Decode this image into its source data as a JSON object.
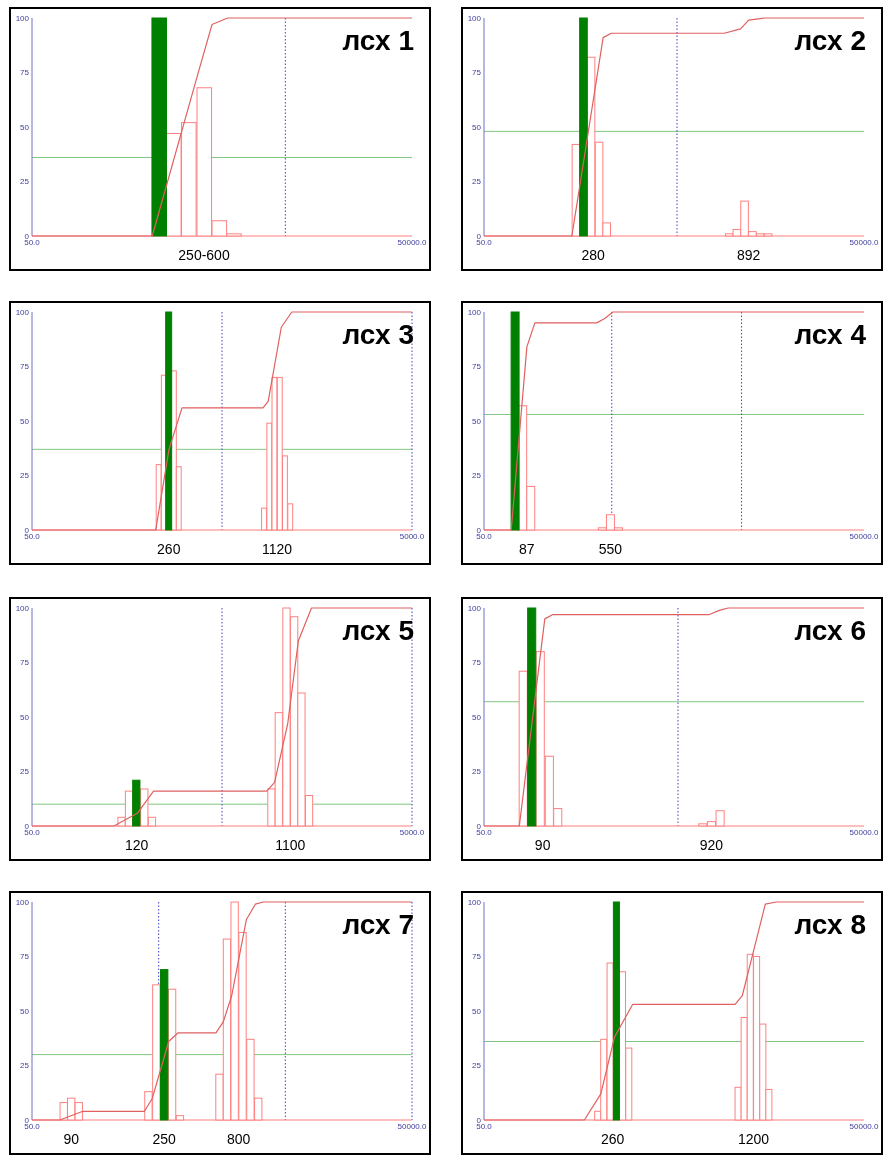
{
  "chart_data": [
    {
      "type": "bar",
      "title": "лсх 1",
      "log": "x",
      "xlim": [
        50,
        50000
      ],
      "xticks": [
        {
          "value": 50,
          "label": "50.0"
        },
        {
          "value": 50000,
          "label": "50000.0"
        }
      ],
      "ylim": [
        0,
        100
      ],
      "yticks": [
        0,
        25,
        50,
        75,
        100
      ],
      "series": [
        {
          "color": "#ff8080",
          "x": [
            658,
            865,
            1146,
            1506,
            1962
          ],
          "values": [
            47,
            52,
            68,
            7,
            1
          ]
        },
        {
          "color": "#008000",
          "x": [
            505
          ],
          "values": [
            100
          ]
        },
        {
          "type": "line",
          "color": "#e06060",
          "x": [
            50,
            445,
            993,
            1318,
            1753,
            50000
          ],
          "values": [
            0,
            0,
            72,
            97,
            100,
            100
          ]
        }
      ],
      "ref_lines": [
        {
          "axis": "y",
          "value": 36,
          "color": "#80c880"
        },
        {
          "axis": "x",
          "value": 5000,
          "color": "#4040c0",
          "line_style": "dotted"
        }
      ],
      "annotations": [
        "250-600"
      ]
    },
    {
      "type": "bar",
      "title": "лсх 2",
      "log": "x",
      "xlim": [
        50,
        50000
      ],
      "xticks": [
        {
          "value": 50,
          "label": "50.0"
        },
        {
          "value": 50000,
          "label": "50000.0"
        }
      ],
      "ylim": [
        0,
        100
      ],
      "yticks": [
        0,
        25,
        50,
        75,
        100
      ],
      "series": [
        {
          "color": "#ff8080",
          "x": [
            266,
            350,
            405,
            465,
            4315,
            4955,
            5700,
            6575,
            7585,
            8750
          ],
          "values": [
            42,
            82,
            43,
            6,
            1,
            3,
            16,
            2,
            1,
            1
          ]
        },
        {
          "color": "#008000",
          "x": [
            305
          ],
          "values": [
            100
          ]
        },
        {
          "type": "line",
          "color": "#e06060",
          "x": [
            50,
            247,
            436,
            505,
            3950,
            5300,
            6150,
            8240,
            50000
          ],
          "values": [
            0,
            0,
            91,
            93,
            93,
            95,
            99,
            100,
            100
          ]
        }
      ],
      "ref_lines": [
        {
          "axis": "y",
          "value": 48,
          "color": "#80c880"
        },
        {
          "axis": "x",
          "value": 1670,
          "color": "#4040c0",
          "line_style": "dotted"
        }
      ],
      "annotations": [
        "280",
        "892"
      ]
    },
    {
      "type": "bar",
      "title": "лсх 3",
      "log": "x",
      "xlim": [
        50,
        5000
      ],
      "xticks": [
        {
          "value": 50,
          "label": "50.0"
        },
        {
          "value": 5000,
          "label": "5000.0"
        }
      ],
      "ylim": [
        0,
        100
      ],
      "yticks": [
        0,
        25,
        50,
        75,
        100
      ],
      "series": [
        {
          "color": "#ff8080",
          "x": [
            232,
            247,
            279,
            296,
            832,
            887,
            944,
            1007,
            1072,
            1143
          ],
          "values": [
            30,
            71,
            73,
            29,
            10,
            49,
            70,
            70,
            34,
            12
          ]
        },
        {
          "color": "#008000",
          "x": [
            262
          ],
          "values": [
            100
          ]
        },
        {
          "type": "line",
          "color": "#e06060",
          "x": [
            50,
            224,
            263,
            308,
            822,
            875,
            1026,
            1165,
            5000
          ],
          "values": [
            0,
            0,
            37,
            56,
            56,
            59,
            93,
            100,
            100
          ]
        }
      ],
      "ref_lines": [
        {
          "axis": "y",
          "value": 37,
          "color": "#80c880"
        },
        {
          "axis": "x",
          "value": 500,
          "color": "#4040c0",
          "line_style": "dotted"
        },
        {
          "axis": "x",
          "value": 5000,
          "color": "#4040c0",
          "line_style": "dotted"
        }
      ],
      "annotations": [
        "260",
        "1120"
      ]
    },
    {
      "type": "bar",
      "title": "лсх 4",
      "log": "x",
      "xlim": [
        50,
        50000
      ],
      "xticks": [
        {
          "value": 50,
          "label": "50.0"
        },
        {
          "value": 50000,
          "label": "50000.0"
        }
      ],
      "ylim": [
        0,
        100
      ],
      "yticks": [
        0,
        25,
        50,
        75,
        100
      ],
      "series": [
        {
          "color": "#ff8080",
          "x": [
            101,
            117,
            430,
            498,
            576
          ],
          "values": [
            57,
            20,
            1,
            7,
            1
          ]
        },
        {
          "color": "#008000",
          "x": [
            88
          ],
          "values": [
            100
          ]
        },
        {
          "type": "line",
          "color": "#e06060",
          "x": [
            50,
            82,
            109,
            126,
            388,
            449,
            520,
            50000
          ],
          "values": [
            0,
            0,
            84,
            95,
            95,
            97,
            100,
            100
          ]
        }
      ],
      "ref_lines": [
        {
          "axis": "y",
          "value": 53,
          "color": "#80c880"
        },
        {
          "axis": "x",
          "value": 510,
          "color": "#4040c0",
          "line_style": "dotted"
        },
        {
          "axis": "x",
          "value": 5400,
          "color": "#4040c0",
          "line_style": "dotted"
        }
      ],
      "annotations": [
        "87",
        "550"
      ]
    },
    {
      "type": "bar",
      "title": "лсх 5",
      "log": "x",
      "xlim": [
        50,
        5000
      ],
      "xticks": [
        {
          "value": 50,
          "label": "50.0"
        },
        {
          "value": 5000,
          "label": "5000.0"
        }
      ],
      "ylim": [
        0,
        100
      ],
      "yticks": [
        0,
        25,
        50,
        75,
        100
      ],
      "series": [
        {
          "color": "#ff8080",
          "x": [
            148,
            162,
            195,
            214,
            910,
            995,
            1092,
            1199,
            1309,
            1436
          ],
          "values": [
            4,
            16,
            17,
            4,
            17,
            52,
            100,
            96,
            61,
            14
          ]
        },
        {
          "color": "#008000",
          "x": [
            177
          ],
          "values": [
            21
          ]
        },
        {
          "type": "line",
          "color": "#e06060",
          "x": [
            50,
            135,
            180,
            218,
            859,
            946,
            1109,
            1262,
            1479,
            5000
          ],
          "values": [
            0,
            0,
            6,
            16,
            16,
            20,
            47,
            85,
            100,
            100
          ]
        }
      ],
      "ref_lines": [
        {
          "axis": "y",
          "value": 10,
          "color": "#80c880"
        },
        {
          "axis": "x",
          "value": 500,
          "color": "#4040c0",
          "line_style": "dotted"
        },
        {
          "axis": "x",
          "value": 5000,
          "color": "#4040c0",
          "line_style": "dotted"
        }
      ],
      "annotations": [
        "120",
        "1100"
      ]
    },
    {
      "type": "bar",
      "title": "лсх 6",
      "log": "x",
      "xlim": [
        50,
        50000
      ],
      "xticks": [
        {
          "value": 50,
          "label": "50.0"
        },
        {
          "value": 50000,
          "label": "50000.0"
        }
      ],
      "ylim": [
        0,
        100
      ],
      "yticks": [
        0,
        25,
        50,
        75,
        100
      ],
      "series": [
        {
          "color": "#ff8080",
          "x": [
            102,
            139,
            164,
            191,
            2670,
            3125,
            3655
          ],
          "values": [
            71,
            80,
            32,
            8,
            1,
            2,
            7
          ]
        },
        {
          "color": "#008000",
          "x": [
            119
          ],
          "values": [
            100
          ]
        },
        {
          "type": "line",
          "color": "#e06060",
          "x": [
            50,
            95,
            151,
            175,
            3005,
            3655,
            4235,
            50000
          ],
          "values": [
            0,
            0,
            95,
            97,
            97,
            99,
            100,
            100
          ]
        }
      ],
      "ref_lines": [
        {
          "axis": "y",
          "value": 57,
          "color": "#80c880"
        },
        {
          "axis": "x",
          "value": 1700,
          "color": "#4040c0",
          "line_style": "dotted"
        }
      ],
      "annotations": [
        "90",
        "920"
      ]
    },
    {
      "type": "bar",
      "title": "лсх 7",
      "log": "x",
      "xlim": [
        50,
        50000
      ],
      "xticks": [
        {
          "value": 50,
          "label": "50.0"
        },
        {
          "value": 50000,
          "label": "50000.0"
        }
      ],
      "ylim": [
        0,
        100
      ],
      "yticks": [
        0,
        25,
        50,
        75,
        100
      ],
      "series": [
        {
          "color": "#ff8080",
          "x": [
            89,
            102,
            117,
            415,
            479,
            638,
            736,
            1510,
            1730,
            1990,
            2295,
            2650,
            3055
          ],
          "values": [
            8,
            10,
            8,
            13,
            62,
            60,
            2,
            21,
            83,
            100,
            86,
            37,
            10
          ]
        },
        {
          "color": "#008000",
          "x": [
            553
          ],
          "values": [
            69
          ]
        },
        {
          "type": "line",
          "color": "#e06060",
          "x": [
            50,
            83,
            126,
            386,
            446,
            600,
            713,
            1416,
            1618,
            1886,
            2465,
            2900,
            3349,
            50000
          ],
          "values": [
            0,
            0,
            4,
            4,
            10,
            36,
            40,
            40,
            45,
            57,
            92,
            99,
            100,
            100
          ]
        }
      ],
      "ref_lines": [
        {
          "axis": "y",
          "value": 30,
          "color": "#80c880"
        },
        {
          "axis": "x",
          "value": 500,
          "color": "#4040c0",
          "line_style": "dotted"
        },
        {
          "axis": "x",
          "value": 5000,
          "color": "#4040c0",
          "line_style": "dotted"
        },
        {
          "axis": "x",
          "value": 50000,
          "color": "#4040c0",
          "line_style": "dotted"
        }
      ],
      "annotations": [
        "90",
        "250",
        "800"
      ]
    },
    {
      "type": "bar",
      "title": "лсх 8",
      "log": "x",
      "xlim": [
        50,
        50000
      ],
      "xticks": [
        {
          "value": 50,
          "label": "50.0"
        },
        {
          "value": 50000,
          "label": "50000.0"
        }
      ],
      "ylim": [
        0,
        100
      ],
      "yticks": [
        0,
        25,
        50,
        75,
        100
      ],
      "series": [
        {
          "color": "#ff8080",
          "x": [
            395,
            441,
            495,
            620,
            695,
            5070,
            5660,
            6325,
            7095,
            7945,
            8870
          ],
          "values": [
            4,
            37,
            72,
            68,
            33,
            15,
            47,
            76,
            75,
            44,
            14
          ]
        },
        {
          "color": "#008000",
          "x": [
            555
          ],
          "values": [
            100
          ]
        },
        {
          "type": "line",
          "color": "#e06060",
          "x": [
            50,
            310,
            418,
            536,
            745,
            4805,
            5470,
            6810,
            8315,
            10140,
            50000
          ],
          "values": [
            0,
            0,
            12,
            38,
            53,
            53,
            57,
            79,
            99,
            100,
            100
          ]
        }
      ],
      "ref_lines": [
        {
          "axis": "y",
          "value": 36,
          "color": "#80c880"
        }
      ],
      "annotations": [
        "260",
        "1200"
      ]
    }
  ]
}
